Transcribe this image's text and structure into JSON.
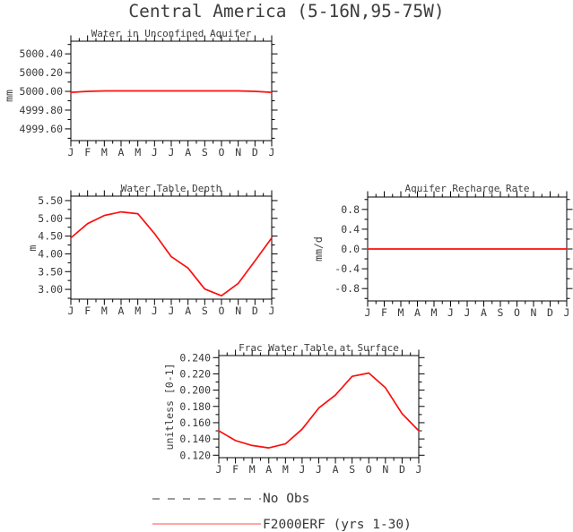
{
  "page": {
    "title": "Central America (5-16N,95-75W)",
    "background": "#ffffff",
    "frame_color": "#000000",
    "text_color": "#383838"
  },
  "legend": {
    "position": "bottom-center",
    "items": [
      {
        "label": "No Obs",
        "style": "dashed",
        "color": "#9c9c9c"
      },
      {
        "label": "F2000ERF (yrs 1-30)",
        "style": "solid",
        "color": "#ffa6a4"
      }
    ]
  },
  "chart_data": [
    {
      "id": "water-in-unconfined-aquifer",
      "type": "line",
      "title": "Water in Unconfined Aquifer",
      "xlabel": "",
      "ylabel": "mm",
      "categories": [
        "J",
        "F",
        "M",
        "A",
        "M",
        "J",
        "J",
        "A",
        "S",
        "O",
        "N",
        "D",
        "J"
      ],
      "series": [
        {
          "name": "F2000ERF (yrs 1-30)",
          "color": "#fb0f0c",
          "values": [
            4999.99,
            5000.0,
            5000.005,
            5000.005,
            5000.005,
            5000.005,
            5000.005,
            5000.005,
            5000.005,
            5000.005,
            5000.005,
            5000.0,
            4999.99
          ]
        }
      ],
      "ylim": [
        4999.475,
        5000.535
      ],
      "yticks": [
        {
          "v": 5000.4,
          "label": "5000.40"
        },
        {
          "v": 5000.2,
          "label": "5000.20"
        },
        {
          "v": 5000.0,
          "label": "5000.00"
        },
        {
          "v": 4999.8,
          "label": "4999.80"
        },
        {
          "v": 4999.6,
          "label": "4999.60"
        }
      ],
      "yminor": [
        4999.5,
        4999.7,
        4999.9,
        5000.1,
        5000.3,
        5000.5
      ],
      "grid": false
    },
    {
      "id": "water-table-depth",
      "type": "line",
      "title": "Water Table Depth",
      "xlabel": "",
      "ylabel": "m",
      "categories": [
        "J",
        "F",
        "M",
        "A",
        "M",
        "J",
        "J",
        "A",
        "S",
        "O",
        "N",
        "D",
        "J"
      ],
      "series": [
        {
          "name": "F2000ERF (yrs 1-30)",
          "color": "#fb0f0c",
          "values": [
            4.45,
            4.85,
            5.08,
            5.18,
            5.13,
            4.57,
            3.92,
            3.6,
            3.01,
            2.82,
            3.17,
            3.8,
            4.45
          ]
        }
      ],
      "ylim": [
        2.725,
        5.625
      ],
      "yticks": [
        {
          "v": 5.5,
          "label": "5.50"
        },
        {
          "v": 5.0,
          "label": "5.00"
        },
        {
          "v": 4.5,
          "label": "4.50"
        },
        {
          "v": 4.0,
          "label": "4.00"
        },
        {
          "v": 3.5,
          "label": "3.50"
        },
        {
          "v": 3.0,
          "label": "3.00"
        }
      ],
      "yminor": [
        2.75,
        3.25,
        3.75,
        4.25,
        4.75,
        5.25
      ],
      "grid": false
    },
    {
      "id": "aquifer-recharge-rate",
      "type": "line",
      "title": "Aquifer Recharge Rate",
      "xlabel": "",
      "ylabel": "mm/d",
      "categories": [
        "J",
        "F",
        "M",
        "A",
        "M",
        "J",
        "J",
        "A",
        "S",
        "O",
        "N",
        "D",
        "J"
      ],
      "series": [
        {
          "name": "F2000ERF (yrs 1-30)",
          "color": "#fb0f0c",
          "values": [
            0.0,
            0.0,
            0.0,
            0.0,
            0.0,
            0.0,
            0.0,
            0.0,
            0.0,
            0.0,
            0.0,
            0.0,
            0.0
          ]
        }
      ],
      "ylim": [
        -1.05,
        1.05
      ],
      "yticks": [
        {
          "v": 0.8,
          "label": "0.8"
        },
        {
          "v": 0.4,
          "label": "0.4"
        },
        {
          "v": 0.0,
          "label": "0.0"
        },
        {
          "v": -0.4,
          "label": "-0.4"
        },
        {
          "v": -0.8,
          "label": "-0.8"
        }
      ],
      "yminor": [
        -1.0,
        -0.6,
        -0.2,
        0.2,
        0.6,
        1.0
      ],
      "grid": false
    },
    {
      "id": "frac-water-table-at-surface",
      "type": "line",
      "title": "Frac Water Table at Surface",
      "xlabel": "",
      "ylabel": "unitless [0-1]",
      "categories": [
        "J",
        "F",
        "M",
        "A",
        "M",
        "J",
        "J",
        "A",
        "S",
        "O",
        "N",
        "D",
        "J"
      ],
      "series": [
        {
          "name": "F2000ERF (yrs 1-30)",
          "color": "#fb0f0c",
          "values": [
            0.15,
            0.138,
            0.132,
            0.129,
            0.134,
            0.152,
            0.178,
            0.194,
            0.217,
            0.221,
            0.203,
            0.171,
            0.15
          ]
        }
      ],
      "ylim": [
        0.117,
        0.2425
      ],
      "yticks": [
        {
          "v": 0.24,
          "label": "0.240"
        },
        {
          "v": 0.22,
          "label": "0.220"
        },
        {
          "v": 0.2,
          "label": "0.200"
        },
        {
          "v": 0.18,
          "label": "0.180"
        },
        {
          "v": 0.16,
          "label": "0.160"
        },
        {
          "v": 0.14,
          "label": "0.140"
        },
        {
          "v": 0.12,
          "label": "0.120"
        }
      ],
      "yminor": [
        0.13,
        0.15,
        0.17,
        0.19,
        0.21,
        0.23
      ],
      "grid": false
    }
  ]
}
